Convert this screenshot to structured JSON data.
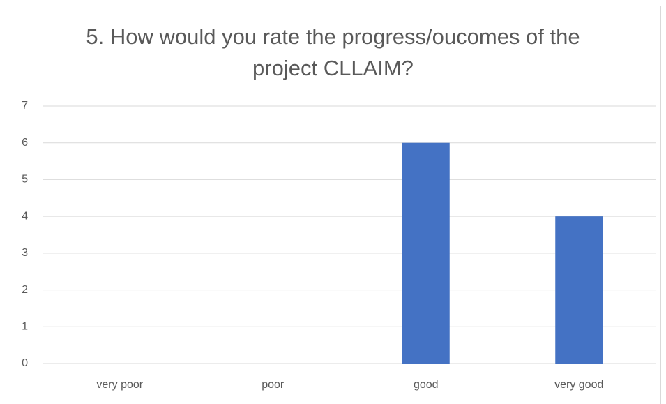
{
  "chart_data": {
    "type": "bar",
    "title": "5. How would you rate the progress/oucomes of the project CLLAIM?",
    "categories": [
      "very poor",
      "poor",
      "good",
      "very good"
    ],
    "values": [
      0,
      0,
      6,
      4
    ],
    "color": "#4472c4",
    "ylim": [
      0,
      7
    ],
    "yticks": [
      0,
      1,
      2,
      3,
      4,
      5,
      6,
      7
    ],
    "grid": true
  }
}
